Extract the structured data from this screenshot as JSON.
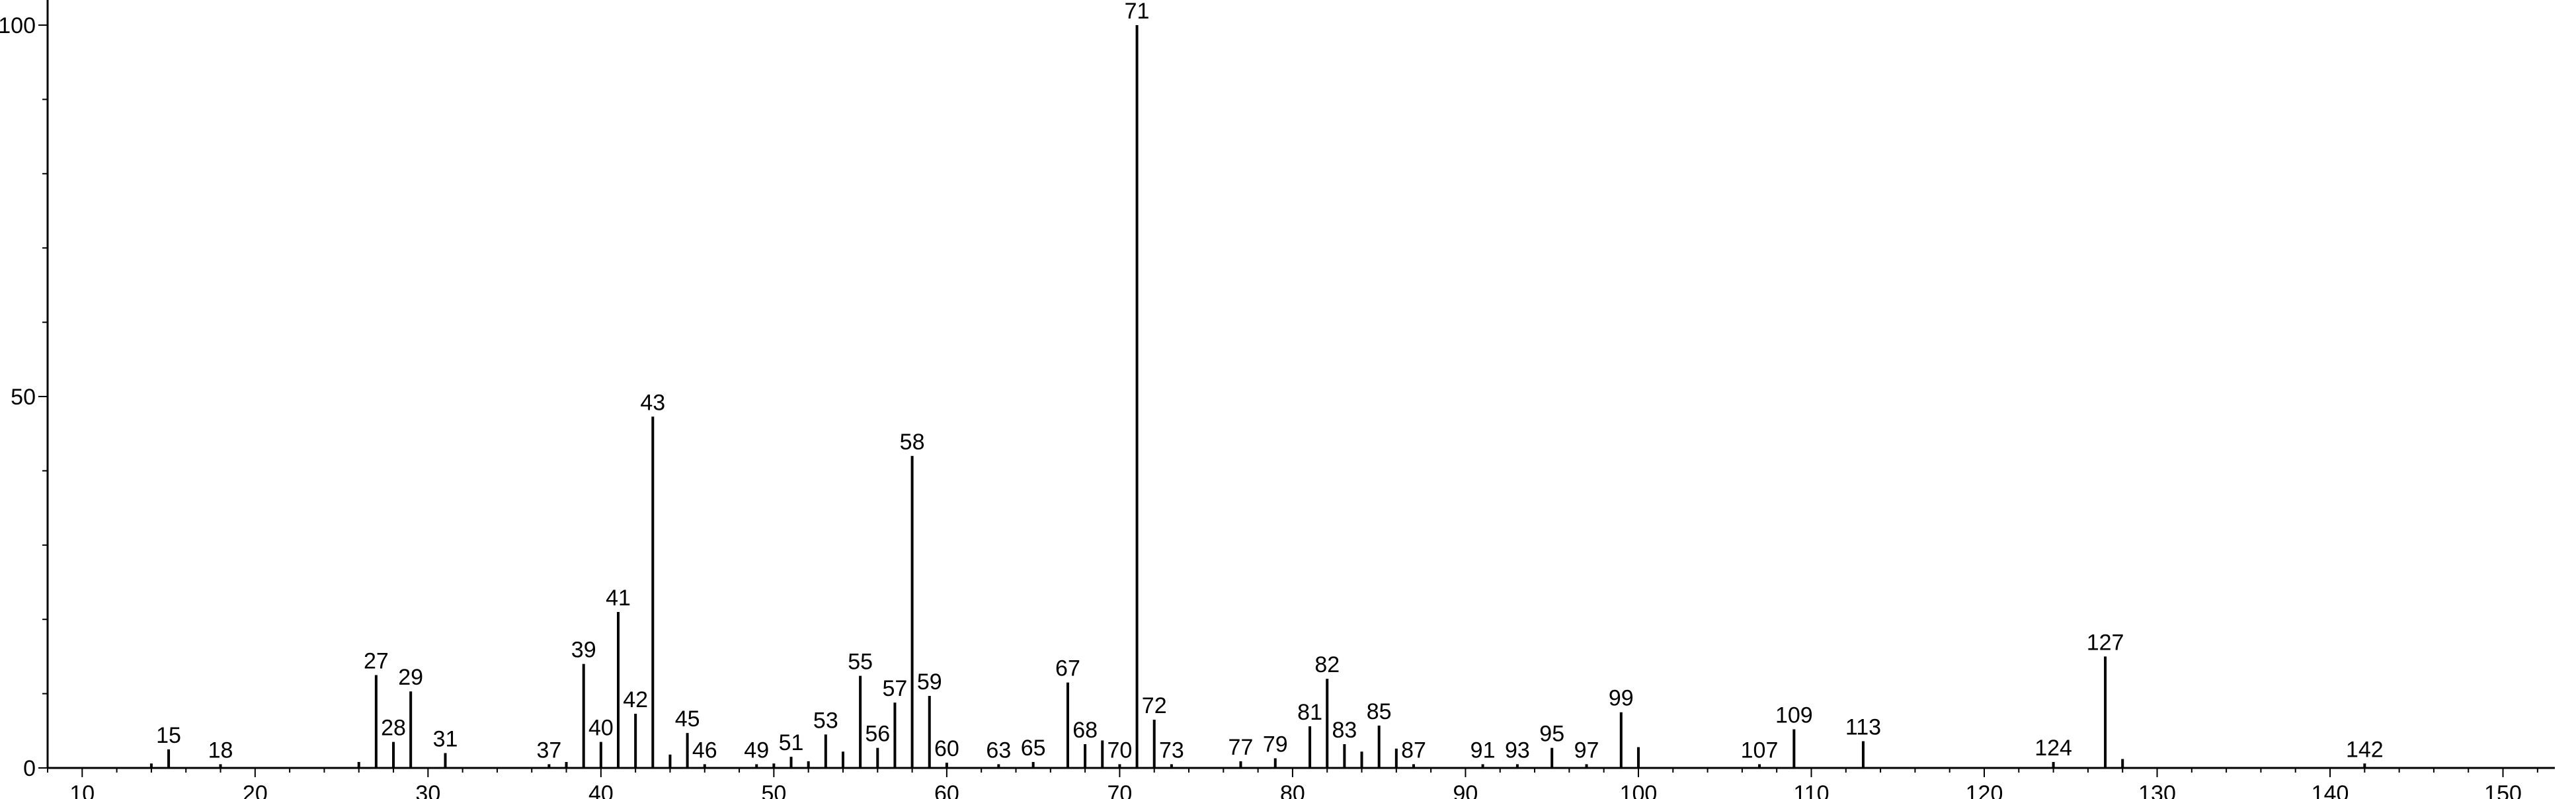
{
  "chart_data": {
    "type": "bar",
    "xlim": [
      8,
      153
    ],
    "ylim": [
      0,
      100
    ],
    "x_ticks": [
      10,
      20,
      30,
      40,
      50,
      60,
      70,
      80,
      90,
      100,
      110,
      120,
      130,
      140,
      150
    ],
    "y_ticks": [
      0,
      50,
      100
    ],
    "grid": false,
    "colors": {
      "axis": "#000000",
      "peak": "#000000",
      "background": "#ffffff"
    },
    "peaks": [
      {
        "x": 14,
        "y": 0.6,
        "label": ""
      },
      {
        "x": 15,
        "y": 2.5,
        "label": "15"
      },
      {
        "x": 18,
        "y": 0.5,
        "label": "18"
      },
      {
        "x": 26,
        "y": 0.8,
        "label": ""
      },
      {
        "x": 27,
        "y": 12.5,
        "label": "27"
      },
      {
        "x": 28,
        "y": 3.5,
        "label": "28"
      },
      {
        "x": 29,
        "y": 10.3,
        "label": "29"
      },
      {
        "x": 31,
        "y": 2.0,
        "label": "31"
      },
      {
        "x": 37,
        "y": 0.5,
        "label": "37"
      },
      {
        "x": 38,
        "y": 0.8,
        "label": ""
      },
      {
        "x": 39,
        "y": 14.0,
        "label": "39"
      },
      {
        "x": 40,
        "y": 3.5,
        "label": "40"
      },
      {
        "x": 41,
        "y": 21.0,
        "label": "41"
      },
      {
        "x": 42,
        "y": 7.3,
        "label": "42"
      },
      {
        "x": 43,
        "y": 47.3,
        "label": "43"
      },
      {
        "x": 44,
        "y": 1.8,
        "label": ""
      },
      {
        "x": 45,
        "y": 4.7,
        "label": "45"
      },
      {
        "x": 46,
        "y": 0.5,
        "label": "46"
      },
      {
        "x": 49,
        "y": 0.5,
        "label": "49"
      },
      {
        "x": 50,
        "y": 0.6,
        "label": ""
      },
      {
        "x": 51,
        "y": 1.5,
        "label": "51"
      },
      {
        "x": 52,
        "y": 0.9,
        "label": ""
      },
      {
        "x": 53,
        "y": 4.5,
        "label": "53"
      },
      {
        "x": 54,
        "y": 2.2,
        "label": ""
      },
      {
        "x": 55,
        "y": 12.4,
        "label": "55"
      },
      {
        "x": 56,
        "y": 2.7,
        "label": "56"
      },
      {
        "x": 57,
        "y": 8.8,
        "label": "57"
      },
      {
        "x": 58,
        "y": 42.0,
        "label": "58"
      },
      {
        "x": 59,
        "y": 9.7,
        "label": "59"
      },
      {
        "x": 60,
        "y": 0.7,
        "label": "60"
      },
      {
        "x": 63,
        "y": 0.5,
        "label": "63"
      },
      {
        "x": 65,
        "y": 0.8,
        "label": "65"
      },
      {
        "x": 67,
        "y": 11.5,
        "label": "67"
      },
      {
        "x": 68,
        "y": 3.2,
        "label": "68"
      },
      {
        "x": 69,
        "y": 3.7,
        "label": ""
      },
      {
        "x": 70,
        "y": 0.5,
        "label": "70"
      },
      {
        "x": 71,
        "y": 100.0,
        "label": "71"
      },
      {
        "x": 72,
        "y": 6.5,
        "label": "72"
      },
      {
        "x": 73,
        "y": 0.5,
        "label": "73"
      },
      {
        "x": 77,
        "y": 0.9,
        "label": "77"
      },
      {
        "x": 79,
        "y": 1.3,
        "label": "79"
      },
      {
        "x": 81,
        "y": 5.6,
        "label": "81"
      },
      {
        "x": 82,
        "y": 12.0,
        "label": "82"
      },
      {
        "x": 83,
        "y": 3.2,
        "label": "83"
      },
      {
        "x": 84,
        "y": 2.2,
        "label": ""
      },
      {
        "x": 85,
        "y": 5.7,
        "label": "85"
      },
      {
        "x": 86,
        "y": 2.6,
        "label": ""
      },
      {
        "x": 87,
        "y": 0.5,
        "label": "87"
      },
      {
        "x": 91,
        "y": 0.5,
        "label": "91"
      },
      {
        "x": 93,
        "y": 0.5,
        "label": "93"
      },
      {
        "x": 95,
        "y": 2.7,
        "label": "95"
      },
      {
        "x": 97,
        "y": 0.5,
        "label": "97"
      },
      {
        "x": 99,
        "y": 7.5,
        "label": "99"
      },
      {
        "x": 100,
        "y": 2.8,
        "label": ""
      },
      {
        "x": 107,
        "y": 0.5,
        "label": "107"
      },
      {
        "x": 109,
        "y": 5.2,
        "label": "109"
      },
      {
        "x": 113,
        "y": 3.6,
        "label": "113"
      },
      {
        "x": 124,
        "y": 0.8,
        "label": "124"
      },
      {
        "x": 127,
        "y": 15.0,
        "label": "127"
      },
      {
        "x": 128,
        "y": 1.2,
        "label": ""
      },
      {
        "x": 142,
        "y": 0.6,
        "label": "142"
      }
    ]
  }
}
